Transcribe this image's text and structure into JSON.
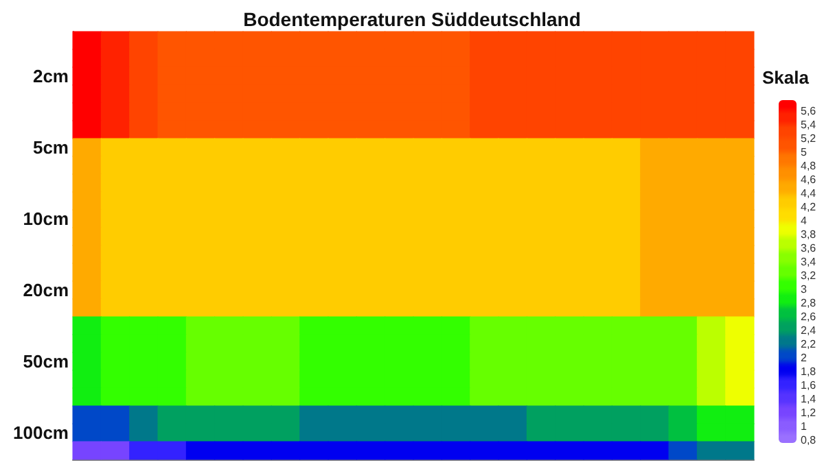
{
  "chart_data": {
    "type": "heatmap",
    "title": "Bodentemperaturen Süddeutschland",
    "clabel": "Skala",
    "tick_labels": "y",
    "categories": [
      null,
      null,
      null,
      null,
      null,
      null,
      null,
      null,
      null,
      null,
      null,
      null,
      null,
      null,
      null,
      null,
      null,
      null,
      null,
      null,
      null,
      null,
      null,
      null
    ],
    "y_categories": [
      null,
      null,
      "2cm",
      null,
      null,
      null,
      "5cm",
      null,
      null,
      null,
      "10cm",
      null,
      null,
      null,
      "20cm",
      null,
      null,
      null,
      "50cm",
      null,
      null,
      null,
      "100cm",
      null
    ],
    "clim": [
      0.8,
      5.8
    ],
    "cticks": [
      {
        "value": 0.8,
        "label": "0,8"
      },
      1,
      {
        "value": 1.2,
        "label": "1,2"
      },
      {
        "value": 1.4,
        "label": "1,4"
      },
      {
        "value": 1.6,
        "label": "1,6"
      },
      {
        "value": 1.8,
        "label": "1,8"
      },
      2,
      {
        "value": 2.2,
        "label": "2,2"
      },
      {
        "value": 2.4,
        "label": "2,4"
      },
      {
        "value": 2.6,
        "label": "2,6"
      },
      {
        "value": 2.8,
        "label": "2,8"
      },
      3,
      {
        "value": 3.2,
        "label": "3,2"
      },
      {
        "value": 3.4,
        "label": "3,4"
      },
      {
        "value": 3.6,
        "label": "3,6"
      },
      {
        "value": 3.8,
        "label": "3,8"
      },
      4,
      {
        "value": 4.2,
        "label": "4,2"
      },
      {
        "value": 4.4,
        "label": "4,4"
      },
      {
        "value": 4.6,
        "label": "4,6"
      },
      {
        "value": 4.8,
        "label": "4,8"
      },
      5,
      {
        "value": 5.2,
        "label": "5,2"
      },
      {
        "value": 5.4,
        "label": "5,4"
      },
      {
        "value": 5.6,
        "label": "5,6"
      }
    ],
    "cells": [
      [
        5.7,
        5.5,
        5.3,
        5.1,
        5.1,
        5.1,
        5.1,
        5.1,
        5.1,
        5.1,
        5.1,
        5.1,
        5.1,
        5.1,
        5.3,
        5.3,
        5.3,
        5.3,
        5.3,
        5.3,
        5.3,
        5.3,
        5.3,
        5.3
      ],
      [
        5.7,
        5.5,
        5.3,
        5.1,
        5.1,
        5.1,
        5.1,
        5.1,
        5.1,
        5.1,
        5.1,
        5.1,
        5.1,
        5.1,
        5.3,
        5.3,
        5.3,
        5.3,
        5.3,
        5.3,
        5.3,
        5.3,
        5.3,
        5.3
      ],
      [
        5.7,
        5.5,
        5.3,
        5.1,
        5.1,
        5.1,
        5.1,
        5.1,
        5.1,
        5.1,
        5.1,
        5.1,
        5.1,
        5.1,
        5.3,
        5.3,
        5.3,
        5.3,
        5.3,
        5.3,
        5.3,
        5.3,
        5.3,
        5.3
      ],
      [
        5.7,
        5.5,
        5.3,
        5.1,
        5.1,
        5.1,
        5.1,
        5.1,
        5.1,
        5.1,
        5.1,
        5.1,
        5.1,
        5.1,
        5.3,
        5.3,
        5.3,
        5.3,
        5.3,
        5.3,
        5.3,
        5.3,
        5.3,
        5.3
      ],
      [
        5.7,
        5.5,
        5.3,
        5.1,
        5.1,
        5.1,
        5.1,
        5.1,
        5.1,
        5.1,
        5.1,
        5.1,
        5.1,
        5.1,
        5.3,
        5.3,
        5.3,
        5.3,
        5.3,
        5.3,
        5.3,
        5.3,
        5.3,
        5.3
      ],
      [
        5.7,
        5.5,
        5.3,
        5.1,
        5.1,
        5.1,
        5.1,
        5.1,
        5.1,
        5.1,
        5.1,
        5.1,
        5.1,
        5.1,
        5.3,
        5.3,
        5.3,
        5.3,
        5.3,
        5.3,
        5.3,
        5.3,
        5.3,
        5.3
      ],
      [
        4.5,
        4.3,
        4.3,
        4.3,
        4.3,
        4.3,
        4.3,
        4.3,
        4.3,
        4.3,
        4.3,
        4.3,
        4.3,
        4.3,
        4.3,
        4.3,
        4.3,
        4.3,
        4.3,
        4.3,
        4.5,
        4.5,
        4.5,
        4.5
      ],
      [
        4.5,
        4.3,
        4.3,
        4.3,
        4.3,
        4.3,
        4.3,
        4.3,
        4.3,
        4.3,
        4.3,
        4.3,
        4.3,
        4.3,
        4.3,
        4.3,
        4.3,
        4.3,
        4.3,
        4.3,
        4.5,
        4.5,
        4.5,
        4.5
      ],
      [
        4.5,
        4.3,
        4.3,
        4.3,
        4.3,
        4.3,
        4.3,
        4.3,
        4.3,
        4.3,
        4.3,
        4.3,
        4.3,
        4.3,
        4.3,
        4.3,
        4.3,
        4.3,
        4.3,
        4.3,
        4.5,
        4.5,
        4.5,
        4.5
      ],
      [
        4.5,
        4.3,
        4.3,
        4.3,
        4.3,
        4.3,
        4.3,
        4.3,
        4.3,
        4.3,
        4.3,
        4.3,
        4.3,
        4.3,
        4.3,
        4.3,
        4.3,
        4.3,
        4.3,
        4.3,
        4.5,
        4.5,
        4.5,
        4.5
      ],
      [
        4.5,
        4.3,
        4.3,
        4.3,
        4.3,
        4.3,
        4.3,
        4.3,
        4.3,
        4.3,
        4.3,
        4.3,
        4.3,
        4.3,
        4.3,
        4.3,
        4.3,
        4.3,
        4.3,
        4.3,
        4.5,
        4.5,
        4.5,
        4.5
      ],
      [
        4.5,
        4.3,
        4.3,
        4.3,
        4.3,
        4.3,
        4.3,
        4.3,
        4.3,
        4.3,
        4.3,
        4.3,
        4.3,
        4.3,
        4.3,
        4.3,
        4.3,
        4.3,
        4.3,
        4.3,
        4.5,
        4.5,
        4.5,
        4.5
      ],
      [
        4.5,
        4.3,
        4.3,
        4.3,
        4.3,
        4.3,
        4.3,
        4.3,
        4.3,
        4.3,
        4.3,
        4.3,
        4.3,
        4.3,
        4.3,
        4.3,
        4.3,
        4.3,
        4.3,
        4.3,
        4.5,
        4.5,
        4.5,
        4.5
      ],
      [
        4.5,
        4.3,
        4.3,
        4.3,
        4.3,
        4.3,
        4.3,
        4.3,
        4.3,
        4.3,
        4.3,
        4.3,
        4.3,
        4.3,
        4.3,
        4.3,
        4.3,
        4.3,
        4.3,
        4.3,
        4.5,
        4.5,
        4.5,
        4.5
      ],
      [
        4.5,
        4.3,
        4.3,
        4.3,
        4.3,
        4.3,
        4.3,
        4.3,
        4.3,
        4.3,
        4.3,
        4.3,
        4.3,
        4.3,
        4.3,
        4.3,
        4.3,
        4.3,
        4.3,
        4.3,
        4.5,
        4.5,
        4.5,
        4.5
      ],
      [
        4.5,
        4.3,
        4.3,
        4.3,
        4.3,
        4.3,
        4.3,
        4.3,
        4.3,
        4.3,
        4.3,
        4.3,
        4.3,
        4.3,
        4.3,
        4.3,
        4.3,
        4.3,
        4.3,
        4.3,
        4.5,
        4.5,
        4.5,
        4.5
      ],
      [
        2.9,
        3.1,
        3.1,
        3.1,
        3.3,
        3.3,
        3.3,
        3.3,
        3.1,
        3.1,
        3.1,
        3.1,
        3.1,
        3.1,
        3.3,
        3.3,
        3.3,
        3.3,
        3.3,
        3.3,
        3.3,
        3.3,
        3.7,
        3.9
      ],
      [
        2.9,
        3.1,
        3.1,
        3.1,
        3.3,
        3.3,
        3.3,
        3.3,
        3.1,
        3.1,
        3.1,
        3.1,
        3.1,
        3.1,
        3.3,
        3.3,
        3.3,
        3.3,
        3.3,
        3.3,
        3.3,
        3.3,
        3.7,
        3.9
      ],
      [
        2.9,
        3.1,
        3.1,
        3.1,
        3.3,
        3.3,
        3.3,
        3.3,
        3.1,
        3.1,
        3.1,
        3.1,
        3.1,
        3.1,
        3.3,
        3.3,
        3.3,
        3.3,
        3.3,
        3.3,
        3.3,
        3.3,
        3.7,
        3.9
      ],
      [
        2.9,
        3.1,
        3.1,
        3.1,
        3.3,
        3.3,
        3.3,
        3.3,
        3.1,
        3.1,
        3.1,
        3.1,
        3.1,
        3.1,
        3.3,
        3.3,
        3.3,
        3.3,
        3.3,
        3.3,
        3.3,
        3.3,
        3.7,
        3.9
      ],
      [
        2.9,
        3.1,
        3.1,
        3.1,
        3.3,
        3.3,
        3.3,
        3.3,
        3.1,
        3.1,
        3.1,
        3.1,
        3.1,
        3.1,
        3.3,
        3.3,
        3.3,
        3.3,
        3.3,
        3.3,
        3.3,
        3.3,
        3.7,
        3.9
      ],
      [
        2.1,
        2.1,
        2.3,
        2.5,
        2.5,
        2.5,
        2.5,
        2.5,
        2.3,
        2.3,
        2.3,
        2.3,
        2.3,
        2.3,
        2.3,
        2.3,
        2.5,
        2.5,
        2.5,
        2.5,
        2.5,
        2.7,
        2.9,
        2.9
      ],
      [
        2.1,
        2.1,
        2.3,
        2.5,
        2.5,
        2.5,
        2.5,
        2.5,
        2.3,
        2.3,
        2.3,
        2.3,
        2.3,
        2.3,
        2.3,
        2.3,
        2.5,
        2.5,
        2.5,
        2.5,
        2.5,
        2.7,
        2.9,
        2.9
      ],
      [
        1.3,
        1.3,
        1.7,
        1.7,
        1.9,
        1.9,
        1.9,
        1.9,
        1.9,
        1.9,
        1.9,
        1.9,
        1.9,
        1.9,
        1.9,
        1.9,
        1.9,
        1.9,
        1.9,
        1.9,
        1.9,
        2.1,
        2.3,
        2.3
      ]
    ]
  }
}
